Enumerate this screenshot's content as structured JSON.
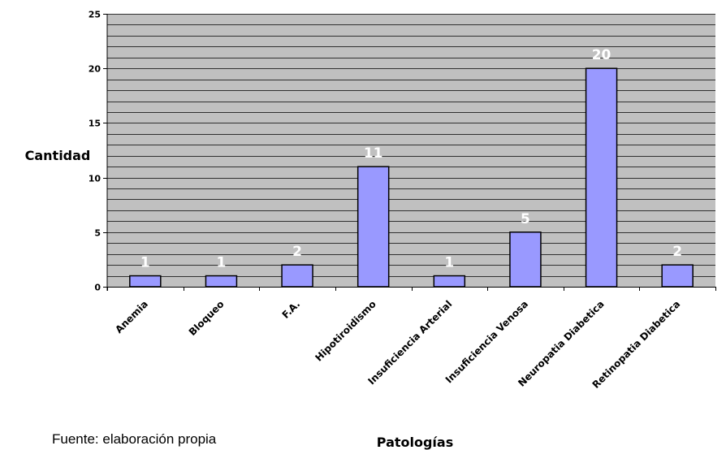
{
  "chart_data": {
    "type": "bar",
    "categories": [
      "Anemia",
      "Bloqueo",
      "F.A.",
      "Hipotiroidismo",
      "Insuficiencia Arterial",
      "Insuficiencia Venosa",
      "Neuropatia Diabetica",
      "Retinopatia Diabetica"
    ],
    "values": [
      1,
      1,
      2,
      11,
      1,
      5,
      20,
      2
    ],
    "xlabel": "Patologías",
    "ylabel": "Cantidad",
    "ylim": [
      0,
      25
    ],
    "yticks": [
      0,
      5,
      10,
      15,
      20,
      25
    ],
    "grid": true,
    "minor_gridlines_per_major": 5,
    "data_labels": true,
    "colors": {
      "bar_fill": "#9999ff",
      "bar_stroke": "#000000",
      "plot_background": "#c0c0c0",
      "gridline": "#000000",
      "data_label": "#ffffff"
    }
  },
  "footer": {
    "source": "Fuente: elaboración propia"
  }
}
